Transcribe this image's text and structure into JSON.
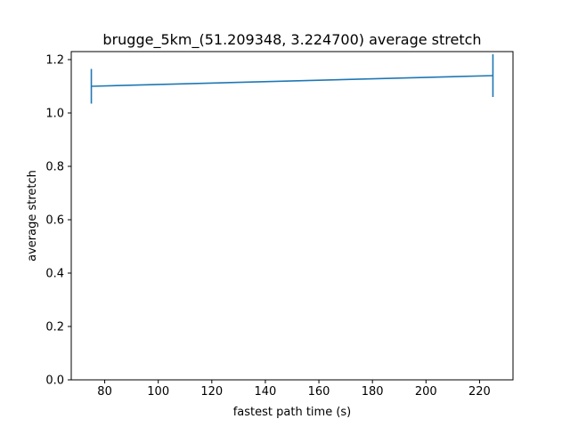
{
  "chart_data": {
    "type": "line",
    "title": "brugge_5km_(51.209348, 3.224700) average stretch",
    "xlabel": "fastest path time (s)",
    "ylabel": "average stretch",
    "xlim": [
      67.5,
      232.5
    ],
    "ylim": [
      0.0,
      1.23
    ],
    "xticks": [
      80,
      100,
      120,
      140,
      160,
      180,
      200,
      220
    ],
    "yticks": [
      0.0,
      0.2,
      0.4,
      0.6,
      0.8,
      1.0,
      1.2
    ],
    "ytick_labels": [
      "0.0",
      "0.2",
      "0.4",
      "0.6",
      "0.8",
      "1.0",
      "1.2"
    ],
    "grid": false,
    "series": [
      {
        "x": [
          75,
          225
        ],
        "y": [
          1.1,
          1.14
        ],
        "yerr_low": [
          1.035,
          1.06
        ],
        "yerr_high": [
          1.165,
          1.22
        ],
        "color": "#1f77b4"
      }
    ]
  }
}
